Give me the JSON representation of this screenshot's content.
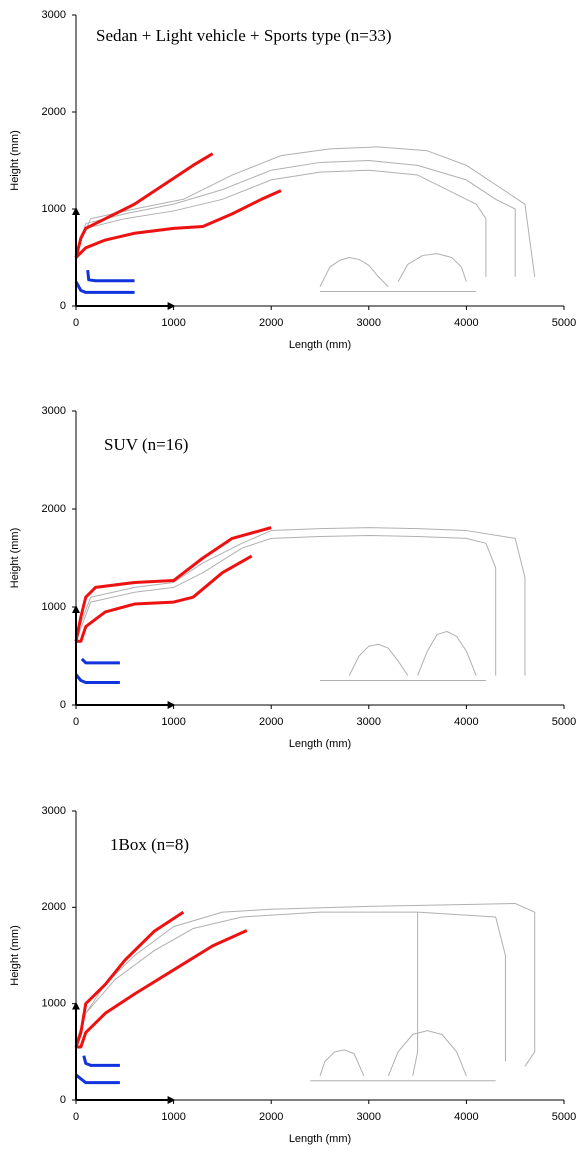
{
  "chart_data": [
    {
      "type": "line",
      "title": "Sedan + Light vehicle + Sports type   (n=33)",
      "xlabel": "Length (mm)",
      "ylabel": "Height (mm)",
      "xlim": [
        0,
        5000
      ],
      "ylim": [
        0,
        3000
      ],
      "xticks": [
        0,
        1000,
        2000,
        3000,
        4000,
        5000
      ],
      "yticks": [
        0,
        1000,
        2000,
        3000
      ],
      "series": [
        {
          "color": "#b0b0b0",
          "x": [
            0,
            100,
            500,
            1000,
            1500,
            2000,
            2500,
            3000,
            3500,
            4000,
            4300,
            4500,
            4500
          ],
          "values": [
            500,
            850,
            950,
            1050,
            1200,
            1400,
            1480,
            1500,
            1450,
            1300,
            1100,
            1000,
            300
          ]
        },
        {
          "color": "#b0b0b0",
          "x": [
            0,
            100,
            500,
            1000,
            1500,
            2000,
            2500,
            3000,
            3500,
            3800,
            4100,
            4200,
            4200
          ],
          "values": [
            550,
            800,
            900,
            980,
            1100,
            1300,
            1380,
            1400,
            1350,
            1200,
            1050,
            900,
            300
          ]
        },
        {
          "color": "#b0b0b0",
          "x": [
            0,
            150,
            600,
            1100,
            1600,
            2100,
            2600,
            3100,
            3600,
            4000,
            4600,
            4700
          ],
          "values": [
            550,
            900,
            1000,
            1100,
            1350,
            1550,
            1620,
            1640,
            1600,
            1450,
            1050,
            300
          ]
        },
        {
          "color": "#b0b0b0",
          "x": [
            2500,
            2600,
            2700,
            2800,
            2900,
            3000,
            3100,
            3200
          ],
          "values": [
            200,
            400,
            470,
            500,
            480,
            420,
            300,
            200
          ]
        },
        {
          "color": "#b0b0b0",
          "x": [
            3300,
            3400,
            3550,
            3700,
            3850,
            3950,
            4000
          ],
          "values": [
            250,
            430,
            520,
            540,
            500,
            400,
            250
          ]
        },
        {
          "color": "#b0b0b0",
          "x": [
            2500,
            4100
          ],
          "values": [
            150,
            150
          ]
        },
        {
          "color": "#ee1111",
          "x": [
            0,
            50,
            100,
            300,
            600,
            900,
            1200,
            1400
          ],
          "values": [
            500,
            700,
            800,
            900,
            1050,
            1250,
            1450,
            1570
          ]
        },
        {
          "color": "#ee1111",
          "x": [
            0,
            100,
            300,
            600,
            1000,
            1300,
            1600,
            1900,
            2100
          ],
          "values": [
            500,
            600,
            680,
            750,
            800,
            820,
            950,
            1100,
            1190
          ]
        },
        {
          "color": "#1133dd",
          "x": [
            120,
            130,
            200,
            600
          ],
          "values": [
            370,
            270,
            260,
            260
          ]
        },
        {
          "color": "#1133dd",
          "x": [
            0,
            50,
            100,
            600
          ],
          "values": [
            250,
            160,
            140,
            140
          ]
        }
      ]
    },
    {
      "type": "line",
      "title": "SUV (n=16)",
      "xlabel": "Length (mm)",
      "ylabel": "Height (mm)",
      "xlim": [
        0,
        5000
      ],
      "ylim": [
        0,
        3000
      ],
      "xticks": [
        0,
        1000,
        2000,
        3000,
        4000,
        5000
      ],
      "yticks": [
        0,
        1000,
        2000,
        3000
      ],
      "series": [
        {
          "color": "#b0b0b0",
          "x": [
            0,
            150,
            600,
            1000,
            1300,
            1700,
            2000,
            2500,
            3000,
            3500,
            4000,
            4200,
            4300,
            4300
          ],
          "values": [
            650,
            1050,
            1150,
            1200,
            1350,
            1600,
            1700,
            1720,
            1730,
            1720,
            1700,
            1650,
            1400,
            300
          ]
        },
        {
          "color": "#b0b0b0",
          "x": [
            0,
            150,
            600,
            1000,
            1300,
            1700,
            2000,
            2500,
            3000,
            3500,
            4000,
            4500,
            4600,
            4600
          ],
          "values": [
            700,
            1100,
            1200,
            1250,
            1450,
            1650,
            1780,
            1800,
            1810,
            1800,
            1780,
            1700,
            1300,
            300
          ]
        },
        {
          "color": "#b0b0b0",
          "x": [
            2800,
            2900,
            3000,
            3100,
            3200,
            3300,
            3400
          ],
          "values": [
            300,
            500,
            600,
            620,
            580,
            450,
            300
          ]
        },
        {
          "color": "#b0b0b0",
          "x": [
            3500,
            3600,
            3700,
            3800,
            3900,
            4000,
            4100
          ],
          "values": [
            300,
            550,
            720,
            750,
            700,
            550,
            300
          ]
        },
        {
          "color": "#b0b0b0",
          "x": [
            2500,
            4200
          ],
          "values": [
            250,
            250
          ]
        },
        {
          "color": "#ee1111",
          "x": [
            0,
            50,
            100,
            200,
            600,
            1000,
            1300,
            1600,
            2000
          ],
          "values": [
            650,
            900,
            1100,
            1200,
            1250,
            1270,
            1500,
            1700,
            1810
          ]
        },
        {
          "color": "#ee1111",
          "x": [
            0,
            50,
            100,
            300,
            600,
            1000,
            1200,
            1500,
            1800
          ],
          "values": [
            650,
            650,
            800,
            950,
            1030,
            1050,
            1100,
            1350,
            1520
          ]
        },
        {
          "color": "#1133dd",
          "x": [
            60,
            100,
            200,
            450
          ],
          "values": [
            470,
            430,
            430,
            430
          ]
        },
        {
          "color": "#1133dd",
          "x": [
            0,
            50,
            100,
            450
          ],
          "values": [
            310,
            250,
            230,
            230
          ]
        }
      ]
    },
    {
      "type": "line",
      "title": "1Box (n=8)",
      "xlabel": "Length (mm)",
      "ylabel": "Height (mm)",
      "xlim": [
        0,
        5000
      ],
      "ylim": [
        0,
        3000
      ],
      "xticks": [
        0,
        1000,
        2000,
        3000,
        4000,
        5000
      ],
      "yticks": [
        0,
        1000,
        2000,
        3000
      ],
      "series": [
        {
          "color": "#b0b0b0",
          "x": [
            0,
            100,
            300,
            600,
            1000,
            1500,
            2000,
            3000,
            4000,
            4500,
            4700,
            4700,
            4600
          ],
          "values": [
            550,
            900,
            1200,
            1500,
            1800,
            1950,
            1980,
            2010,
            2030,
            2040,
            1950,
            500,
            350
          ]
        },
        {
          "color": "#b0b0b0",
          "x": [
            0,
            100,
            400,
            800,
            1200,
            1700,
            2500,
            3500,
            4300,
            4400,
            4400
          ],
          "values": [
            600,
            900,
            1250,
            1550,
            1780,
            1900,
            1950,
            1950,
            1900,
            1500,
            400
          ]
        },
        {
          "color": "#b0b0b0",
          "x": [
            3500,
            3500,
            3450
          ],
          "values": [
            1950,
            500,
            250
          ]
        },
        {
          "color": "#b0b0b0",
          "x": [
            2500,
            2550,
            2650,
            2750,
            2850,
            2950
          ],
          "values": [
            250,
            400,
            500,
            520,
            480,
            250
          ]
        },
        {
          "color": "#b0b0b0",
          "x": [
            3200,
            3300,
            3450,
            3600,
            3750,
            3900,
            4000
          ],
          "values": [
            250,
            500,
            680,
            720,
            680,
            500,
            250
          ]
        },
        {
          "color": "#b0b0b0",
          "x": [
            2400,
            4300
          ],
          "values": [
            200,
            200
          ]
        },
        {
          "color": "#ee1111",
          "x": [
            0,
            50,
            100,
            300,
            500,
            800,
            1100
          ],
          "values": [
            550,
            700,
            1000,
            1200,
            1450,
            1750,
            1950
          ]
        },
        {
          "color": "#ee1111",
          "x": [
            0,
            50,
            100,
            300,
            600,
            1000,
            1400,
            1750
          ],
          "values": [
            550,
            550,
            700,
            900,
            1100,
            1350,
            1600,
            1760
          ]
        },
        {
          "color": "#1133dd",
          "x": [
            80,
            100,
            150,
            450
          ],
          "values": [
            460,
            380,
            360,
            360
          ]
        },
        {
          "color": "#1133dd",
          "x": [
            0,
            50,
            100,
            450
          ],
          "values": [
            260,
            220,
            180,
            180
          ]
        }
      ]
    }
  ]
}
